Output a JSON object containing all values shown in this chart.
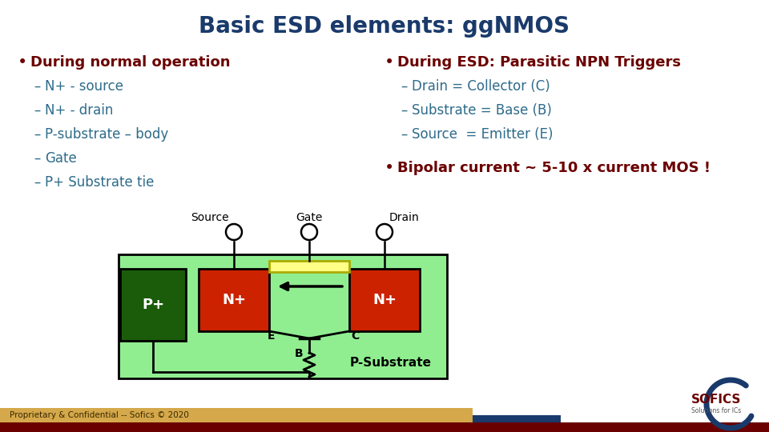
{
  "title": "Basic ESD elements: ggNMOS",
  "title_color": "#1a3a6b",
  "title_fontsize": 20,
  "bg_color": "#ffffff",
  "left_bullet": "During normal operation",
  "left_items": [
    "N+ - source",
    "N+ - drain",
    "P-substrate – body",
    "Gate",
    "P+ Substrate tie"
  ],
  "right_bullet": "During ESD: Parasitic NPN Triggers",
  "right_items": [
    "Drain = Collector (C)",
    "Substrate = Base (B)",
    "Source  = Emitter (E)"
  ],
  "right_bullet2": "Bipolar current ~ 5-10 x current MOS !",
  "bullet_color": "#6b0000",
  "item_color": "#2e6b8a",
  "footer_text": "Proprietary & Confidential -- Sofics © 2020",
  "footer_bg": "#d4a84b",
  "bar_dark_red": "#6b0000",
  "bar_dark_blue": "#1a3a6b",
  "p_substrate_light": "#90ee90",
  "p_substrate_dark": "#40b040",
  "p_plus_color": "#1a5c0a",
  "n_plus_color": "#cc2200",
  "gate_fill": "#ffff88",
  "gate_stroke": "#aaaa00"
}
